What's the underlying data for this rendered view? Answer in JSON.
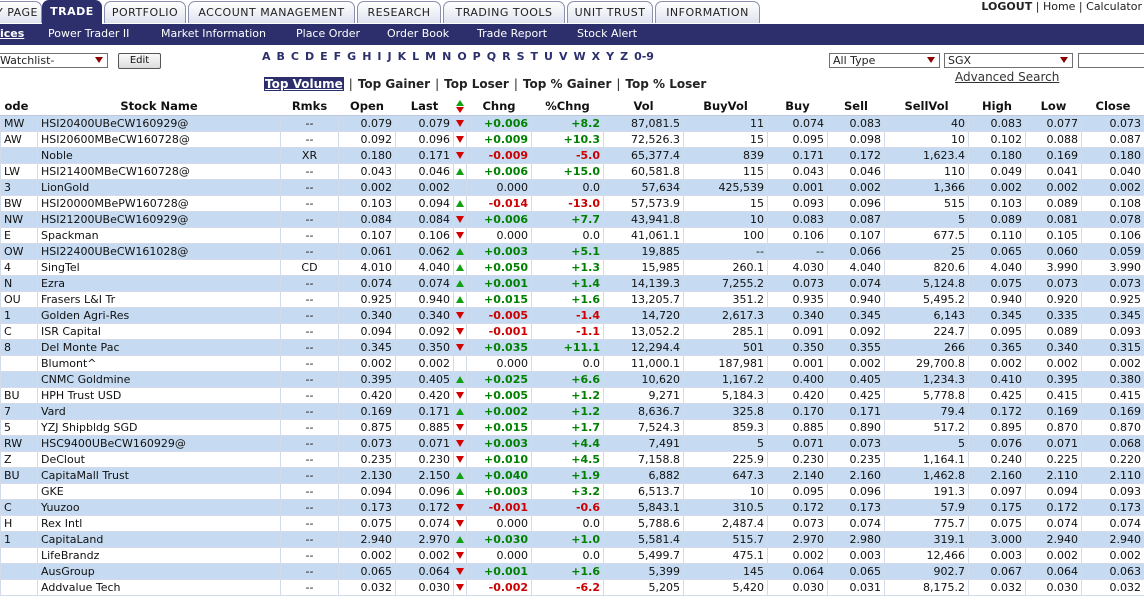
{
  "nav": {
    "tabs": [
      {
        "label": "Y PAGE",
        "active": false
      },
      {
        "label": "TRADE",
        "active": true
      },
      {
        "label": "PORTFOLIO",
        "active": false
      },
      {
        "label": "ACCOUNT MANAGEMENT",
        "active": false
      },
      {
        "label": "RESEARCH",
        "active": false
      },
      {
        "label": "TRADING TOOLS",
        "active": false
      },
      {
        "label": "UNIT TRUST",
        "active": false
      },
      {
        "label": "INFORMATION",
        "active": false
      }
    ],
    "logout": "LOGOUT",
    "home": "Home",
    "calculator": "Calculator",
    "link_separator": "|"
  },
  "subnav": {
    "items": [
      {
        "label": "ices",
        "active": true
      },
      {
        "label": "Power Trader II",
        "active": false
      },
      {
        "label": "Market Information",
        "active": false
      },
      {
        "label": "Place Order",
        "active": false
      },
      {
        "label": "Order Book",
        "active": false
      },
      {
        "label": "Trade Report",
        "active": false
      },
      {
        "label": "Stock Alert",
        "active": false
      }
    ]
  },
  "filters": {
    "watchlist": "Watchlist-",
    "edit_button": "Edit",
    "letters": [
      "A",
      "B",
      "C",
      "D",
      "E",
      "F",
      "G",
      "H",
      "I",
      "J",
      "K",
      "L",
      "M",
      "N",
      "O",
      "P",
      "Q",
      "R",
      "S",
      "T",
      "U",
      "V",
      "W",
      "X",
      "Y",
      "Z",
      "0-9"
    ],
    "type_select": "All Type",
    "market_select": "SGX",
    "advanced_search": "Advanced Search"
  },
  "ranking": {
    "separator": "|",
    "tabs": [
      {
        "label": "Top Volume",
        "active": true
      },
      {
        "label": "Top Gainer",
        "active": false
      },
      {
        "label": "Top Loser",
        "active": false
      },
      {
        "label": "Top % Gainer",
        "active": false
      },
      {
        "label": "Top % Loser",
        "active": false
      }
    ]
  },
  "table": {
    "headers": {
      "code": "ode",
      "name": "Stock Name",
      "rmks": "Rmks",
      "open": "Open",
      "last": "Last",
      "chng": "Chng",
      "pchng": "%Chng",
      "vol": "Vol",
      "buyvol": "BuyVol",
      "buy": "Buy",
      "sell": "Sell",
      "sellvol": "SellVol",
      "high": "High",
      "low": "Low",
      "close": "Close"
    },
    "rows": [
      {
        "code": "MW",
        "name": "HSI20400UBeCW160929@",
        "rmks": "--",
        "open": "0.079",
        "last": "0.079",
        "dir": "down",
        "chng": "+0.006",
        "pchng": "+8.2",
        "vol": "87,081.5",
        "buyvol": "11",
        "buy": "0.074",
        "sell": "0.083",
        "sellvol": "40",
        "high": "0.083",
        "low": "0.077",
        "close": "0.073"
      },
      {
        "code": "AW",
        "name": "HSI20600MBeCW160728@",
        "rmks": "--",
        "open": "0.092",
        "last": "0.096",
        "dir": "down",
        "chng": "+0.009",
        "pchng": "+10.3",
        "vol": "72,526.3",
        "buyvol": "15",
        "buy": "0.095",
        "sell": "0.098",
        "sellvol": "10",
        "high": "0.102",
        "low": "0.088",
        "close": "0.087"
      },
      {
        "code": "",
        "name": "Noble",
        "rmks": "XR",
        "open": "0.180",
        "last": "0.171",
        "dir": "down",
        "chng": "-0.009",
        "pchng": "-5.0",
        "vol": "65,377.4",
        "buyvol": "839",
        "buy": "0.171",
        "sell": "0.172",
        "sellvol": "1,623.4",
        "high": "0.180",
        "low": "0.169",
        "close": "0.180"
      },
      {
        "code": "LW",
        "name": "HSI21400MBeCW160728@",
        "rmks": "--",
        "open": "0.043",
        "last": "0.046",
        "dir": "up",
        "chng": "+0.006",
        "pchng": "+15.0",
        "vol": "60,581.8",
        "buyvol": "115",
        "buy": "0.043",
        "sell": "0.046",
        "sellvol": "110",
        "high": "0.049",
        "low": "0.041",
        "close": "0.040"
      },
      {
        "code": "3",
        "name": "LionGold",
        "rmks": "--",
        "open": "0.002",
        "last": "0.002",
        "dir": "",
        "chng": "0.000",
        "pchng": "0.0",
        "vol": "57,634",
        "buyvol": "425,539",
        "buy": "0.001",
        "sell": "0.002",
        "sellvol": "1,366",
        "high": "0.002",
        "low": "0.002",
        "close": "0.002"
      },
      {
        "code": "BW",
        "name": "HSI20000MBePW160728@",
        "rmks": "--",
        "open": "0.103",
        "last": "0.094",
        "dir": "up",
        "chng": "-0.014",
        "pchng": "-13.0",
        "vol": "57,573.9",
        "buyvol": "15",
        "buy": "0.093",
        "sell": "0.096",
        "sellvol": "515",
        "high": "0.103",
        "low": "0.089",
        "close": "0.108"
      },
      {
        "code": "NW",
        "name": "HSI21200UBeCW160929@",
        "rmks": "--",
        "open": "0.084",
        "last": "0.084",
        "dir": "down",
        "chng": "+0.006",
        "pchng": "+7.7",
        "vol": "43,941.8",
        "buyvol": "10",
        "buy": "0.083",
        "sell": "0.087",
        "sellvol": "5",
        "high": "0.089",
        "low": "0.081",
        "close": "0.078"
      },
      {
        "code": "E",
        "name": "Spackman",
        "rmks": "--",
        "open": "0.107",
        "last": "0.106",
        "dir": "down",
        "chng": "0.000",
        "pchng": "0.0",
        "vol": "41,061.1",
        "buyvol": "100",
        "buy": "0.106",
        "sell": "0.107",
        "sellvol": "677.5",
        "high": "0.110",
        "low": "0.105",
        "close": "0.106"
      },
      {
        "code": "OW",
        "name": "HSI22400UBeCW161028@",
        "rmks": "--",
        "open": "0.061",
        "last": "0.062",
        "dir": "up",
        "chng": "+0.003",
        "pchng": "+5.1",
        "vol": "19,885",
        "buyvol": "--",
        "buy": "--",
        "sell": "0.066",
        "sellvol": "25",
        "high": "0.065",
        "low": "0.060",
        "close": "0.059"
      },
      {
        "code": "4",
        "name": "SingTel",
        "rmks": "CD",
        "open": "4.010",
        "last": "4.040",
        "dir": "up",
        "chng": "+0.050",
        "pchng": "+1.3",
        "vol": "15,985",
        "buyvol": "260.1",
        "buy": "4.030",
        "sell": "4.040",
        "sellvol": "820.6",
        "high": "4.040",
        "low": "3.990",
        "close": "3.990"
      },
      {
        "code": "N",
        "name": "Ezra",
        "rmks": "--",
        "open": "0.074",
        "last": "0.074",
        "dir": "up",
        "chng": "+0.001",
        "pchng": "+1.4",
        "vol": "14,139.3",
        "buyvol": "7,255.2",
        "buy": "0.073",
        "sell": "0.074",
        "sellvol": "5,124.8",
        "high": "0.075",
        "low": "0.073",
        "close": "0.073"
      },
      {
        "code": "OU",
        "name": "Frasers L&I Tr",
        "rmks": "--",
        "open": "0.925",
        "last": "0.940",
        "dir": "up",
        "chng": "+0.015",
        "pchng": "+1.6",
        "vol": "13,205.7",
        "buyvol": "351.2",
        "buy": "0.935",
        "sell": "0.940",
        "sellvol": "5,495.2",
        "high": "0.940",
        "low": "0.920",
        "close": "0.925"
      },
      {
        "code": "1",
        "name": "Golden Agri-Res",
        "rmks": "--",
        "open": "0.340",
        "last": "0.340",
        "dir": "down",
        "chng": "-0.005",
        "pchng": "-1.4",
        "vol": "14,720",
        "buyvol": "2,617.3",
        "buy": "0.340",
        "sell": "0.345",
        "sellvol": "6,143",
        "high": "0.345",
        "low": "0.335",
        "close": "0.345"
      },
      {
        "code": "C",
        "name": "ISR Capital",
        "rmks": "--",
        "open": "0.094",
        "last": "0.092",
        "dir": "down",
        "chng": "-0.001",
        "pchng": "-1.1",
        "vol": "13,052.2",
        "buyvol": "285.1",
        "buy": "0.091",
        "sell": "0.092",
        "sellvol": "224.7",
        "high": "0.095",
        "low": "0.089",
        "close": "0.093"
      },
      {
        "code": "8",
        "name": "Del Monte Pac",
        "rmks": "--",
        "open": "0.345",
        "last": "0.350",
        "dir": "down",
        "chng": "+0.035",
        "pchng": "+11.1",
        "vol": "12,294.4",
        "buyvol": "501",
        "buy": "0.350",
        "sell": "0.355",
        "sellvol": "266",
        "high": "0.365",
        "low": "0.340",
        "close": "0.315"
      },
      {
        "code": "",
        "name": "Blumont^",
        "rmks": "--",
        "open": "0.002",
        "last": "0.002",
        "dir": "",
        "chng": "0.000",
        "pchng": "0.0",
        "vol": "11,000.1",
        "buyvol": "187,981",
        "buy": "0.001",
        "sell": "0.002",
        "sellvol": "29,700.8",
        "high": "0.002",
        "low": "0.002",
        "close": "0.002"
      },
      {
        "code": "",
        "name": "CNMC Goldmine",
        "rmks": "--",
        "open": "0.395",
        "last": "0.405",
        "dir": "up",
        "chng": "+0.025",
        "pchng": "+6.6",
        "vol": "10,620",
        "buyvol": "1,167.2",
        "buy": "0.400",
        "sell": "0.405",
        "sellvol": "1,234.3",
        "high": "0.410",
        "low": "0.395",
        "close": "0.380"
      },
      {
        "code": "BU",
        "name": "HPH Trust USD",
        "rmks": "--",
        "open": "0.420",
        "last": "0.420",
        "dir": "down",
        "chng": "+0.005",
        "pchng": "+1.2",
        "vol": "9,271",
        "buyvol": "5,184.3",
        "buy": "0.420",
        "sell": "0.425",
        "sellvol": "5,778.8",
        "high": "0.425",
        "low": "0.415",
        "close": "0.415"
      },
      {
        "code": "7",
        "name": "Vard",
        "rmks": "--",
        "open": "0.169",
        "last": "0.171",
        "dir": "up",
        "chng": "+0.002",
        "pchng": "+1.2",
        "vol": "8,636.7",
        "buyvol": "325.8",
        "buy": "0.170",
        "sell": "0.171",
        "sellvol": "79.4",
        "high": "0.172",
        "low": "0.169",
        "close": "0.169"
      },
      {
        "code": "5",
        "name": "YZJ Shipbldg SGD",
        "rmks": "--",
        "open": "0.875",
        "last": "0.885",
        "dir": "down",
        "chng": "+0.015",
        "pchng": "+1.7",
        "vol": "7,524.3",
        "buyvol": "859.3",
        "buy": "0.885",
        "sell": "0.890",
        "sellvol": "517.2",
        "high": "0.895",
        "low": "0.870",
        "close": "0.870"
      },
      {
        "code": "RW",
        "name": "HSC9400UBeCW160929@",
        "rmks": "--",
        "open": "0.073",
        "last": "0.071",
        "dir": "down",
        "chng": "+0.003",
        "pchng": "+4.4",
        "vol": "7,491",
        "buyvol": "5",
        "buy": "0.071",
        "sell": "0.073",
        "sellvol": "5",
        "high": "0.076",
        "low": "0.071",
        "close": "0.068"
      },
      {
        "code": "Z",
        "name": "DeClout",
        "rmks": "--",
        "open": "0.235",
        "last": "0.230",
        "dir": "down",
        "chng": "+0.010",
        "pchng": "+4.5",
        "vol": "7,158.8",
        "buyvol": "225.9",
        "buy": "0.230",
        "sell": "0.235",
        "sellvol": "1,164.1",
        "high": "0.240",
        "low": "0.225",
        "close": "0.220"
      },
      {
        "code": "BU",
        "name": "CapitaMall Trust",
        "rmks": "--",
        "open": "2.130",
        "last": "2.150",
        "dir": "up",
        "chng": "+0.040",
        "pchng": "+1.9",
        "vol": "6,882",
        "buyvol": "647.3",
        "buy": "2.140",
        "sell": "2.160",
        "sellvol": "1,462.8",
        "high": "2.160",
        "low": "2.110",
        "close": "2.110"
      },
      {
        "code": "",
        "name": "GKE",
        "rmks": "--",
        "open": "0.094",
        "last": "0.096",
        "dir": "up",
        "chng": "+0.003",
        "pchng": "+3.2",
        "vol": "6,513.7",
        "buyvol": "10",
        "buy": "0.095",
        "sell": "0.096",
        "sellvol": "191.3",
        "high": "0.097",
        "low": "0.094",
        "close": "0.093"
      },
      {
        "code": "C",
        "name": "Yuuzoo",
        "rmks": "--",
        "open": "0.173",
        "last": "0.172",
        "dir": "down",
        "chng": "-0.001",
        "pchng": "-0.6",
        "vol": "5,843.1",
        "buyvol": "310.5",
        "buy": "0.172",
        "sell": "0.173",
        "sellvol": "57.9",
        "high": "0.175",
        "low": "0.172",
        "close": "0.173"
      },
      {
        "code": "H",
        "name": "Rex Intl",
        "rmks": "--",
        "open": "0.075",
        "last": "0.074",
        "dir": "down",
        "chng": "0.000",
        "pchng": "0.0",
        "vol": "5,788.6",
        "buyvol": "2,487.4",
        "buy": "0.073",
        "sell": "0.074",
        "sellvol": "775.7",
        "high": "0.075",
        "low": "0.074",
        "close": "0.074"
      },
      {
        "code": "1",
        "name": "CapitaLand",
        "rmks": "--",
        "open": "2.940",
        "last": "2.970",
        "dir": "up",
        "chng": "+0.030",
        "pchng": "+1.0",
        "vol": "5,581.4",
        "buyvol": "515.7",
        "buy": "2.970",
        "sell": "2.980",
        "sellvol": "319.1",
        "high": "3.000",
        "low": "2.940",
        "close": "2.940"
      },
      {
        "code": "",
        "name": "LifeBrandz",
        "rmks": "--",
        "open": "0.002",
        "last": "0.002",
        "dir": "down",
        "chng": "0.000",
        "pchng": "0.0",
        "vol": "5,499.7",
        "buyvol": "475.1",
        "buy": "0.002",
        "sell": "0.003",
        "sellvol": "12,466",
        "high": "0.003",
        "low": "0.002",
        "close": "0.002"
      },
      {
        "code": "",
        "name": "AusGroup",
        "rmks": "--",
        "open": "0.065",
        "last": "0.064",
        "dir": "down",
        "chng": "+0.001",
        "pchng": "+1.6",
        "vol": "5,399",
        "buyvol": "145",
        "buy": "0.064",
        "sell": "0.065",
        "sellvol": "902.7",
        "high": "0.067",
        "low": "0.064",
        "close": "0.063"
      },
      {
        "code": "",
        "name": "Addvalue Tech",
        "rmks": "--",
        "open": "0.032",
        "last": "0.030",
        "dir": "down",
        "chng": "-0.002",
        "pchng": "-6.2",
        "vol": "5,205",
        "buyvol": "5,420",
        "buy": "0.030",
        "sell": "0.031",
        "sellvol": "8,175.2",
        "high": "0.032",
        "low": "0.030",
        "close": "0.032"
      }
    ]
  }
}
